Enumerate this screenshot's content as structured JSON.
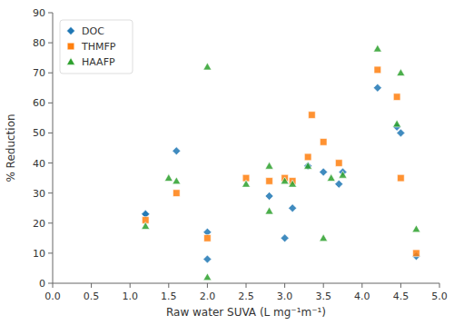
{
  "chart_data": {
    "type": "scatter",
    "xlabel": "Raw water SUVA (L mg⁻¹m⁻¹)",
    "ylabel": "% Reduction",
    "series": [
      {
        "name": "DOC",
        "marker": "diamond",
        "x": [
          1.2,
          1.2,
          1.6,
          2.0,
          2.0,
          2.8,
          3.0,
          3.1,
          3.3,
          3.5,
          3.7,
          3.75,
          4.2,
          4.45,
          4.5,
          4.7
        ],
        "values": [
          23,
          23,
          44,
          17,
          8,
          29,
          15,
          25,
          39,
          37,
          33,
          37,
          65,
          52,
          50,
          9
        ]
      },
      {
        "name": "THMFP",
        "marker": "square",
        "x": [
          1.2,
          1.6,
          2.0,
          2.5,
          2.8,
          3.0,
          3.1,
          3.3,
          3.35,
          3.5,
          3.7,
          4.2,
          4.45,
          4.5,
          4.7
        ],
        "values": [
          21,
          30,
          15,
          35,
          34,
          35,
          34,
          42,
          56,
          47,
          40,
          71,
          62,
          35,
          10
        ]
      },
      {
        "name": "HAAFP",
        "marker": "triangle",
        "x": [
          1.2,
          1.5,
          1.6,
          2.0,
          2.0,
          2.5,
          2.8,
          2.8,
          3.0,
          3.1,
          3.3,
          3.5,
          3.6,
          3.75,
          4.2,
          4.45,
          4.5,
          4.7
        ],
        "values": [
          19,
          35,
          34,
          72,
          2,
          33,
          24,
          39,
          34,
          33,
          39,
          15,
          35,
          36,
          78,
          53,
          70,
          18
        ]
      }
    ],
    "xlim": [
      0,
      5
    ],
    "ylim": [
      0,
      90
    ],
    "xticks": [
      {
        "value": 0,
        "label": "0.0"
      },
      0.5,
      {
        "value": 1,
        "label": "1.0"
      },
      1.5,
      {
        "value": 2,
        "label": "2.0"
      },
      2.5,
      {
        "value": 3,
        "label": "3.0"
      },
      3.5,
      {
        "value": 4,
        "label": "4.0"
      },
      4.5,
      {
        "value": 5,
        "label": "5.0"
      }
    ],
    "yticks": [
      0,
      10,
      20,
      30,
      40,
      50,
      60,
      70,
      80,
      90
    ],
    "grid": false,
    "legend": "upper left"
  }
}
